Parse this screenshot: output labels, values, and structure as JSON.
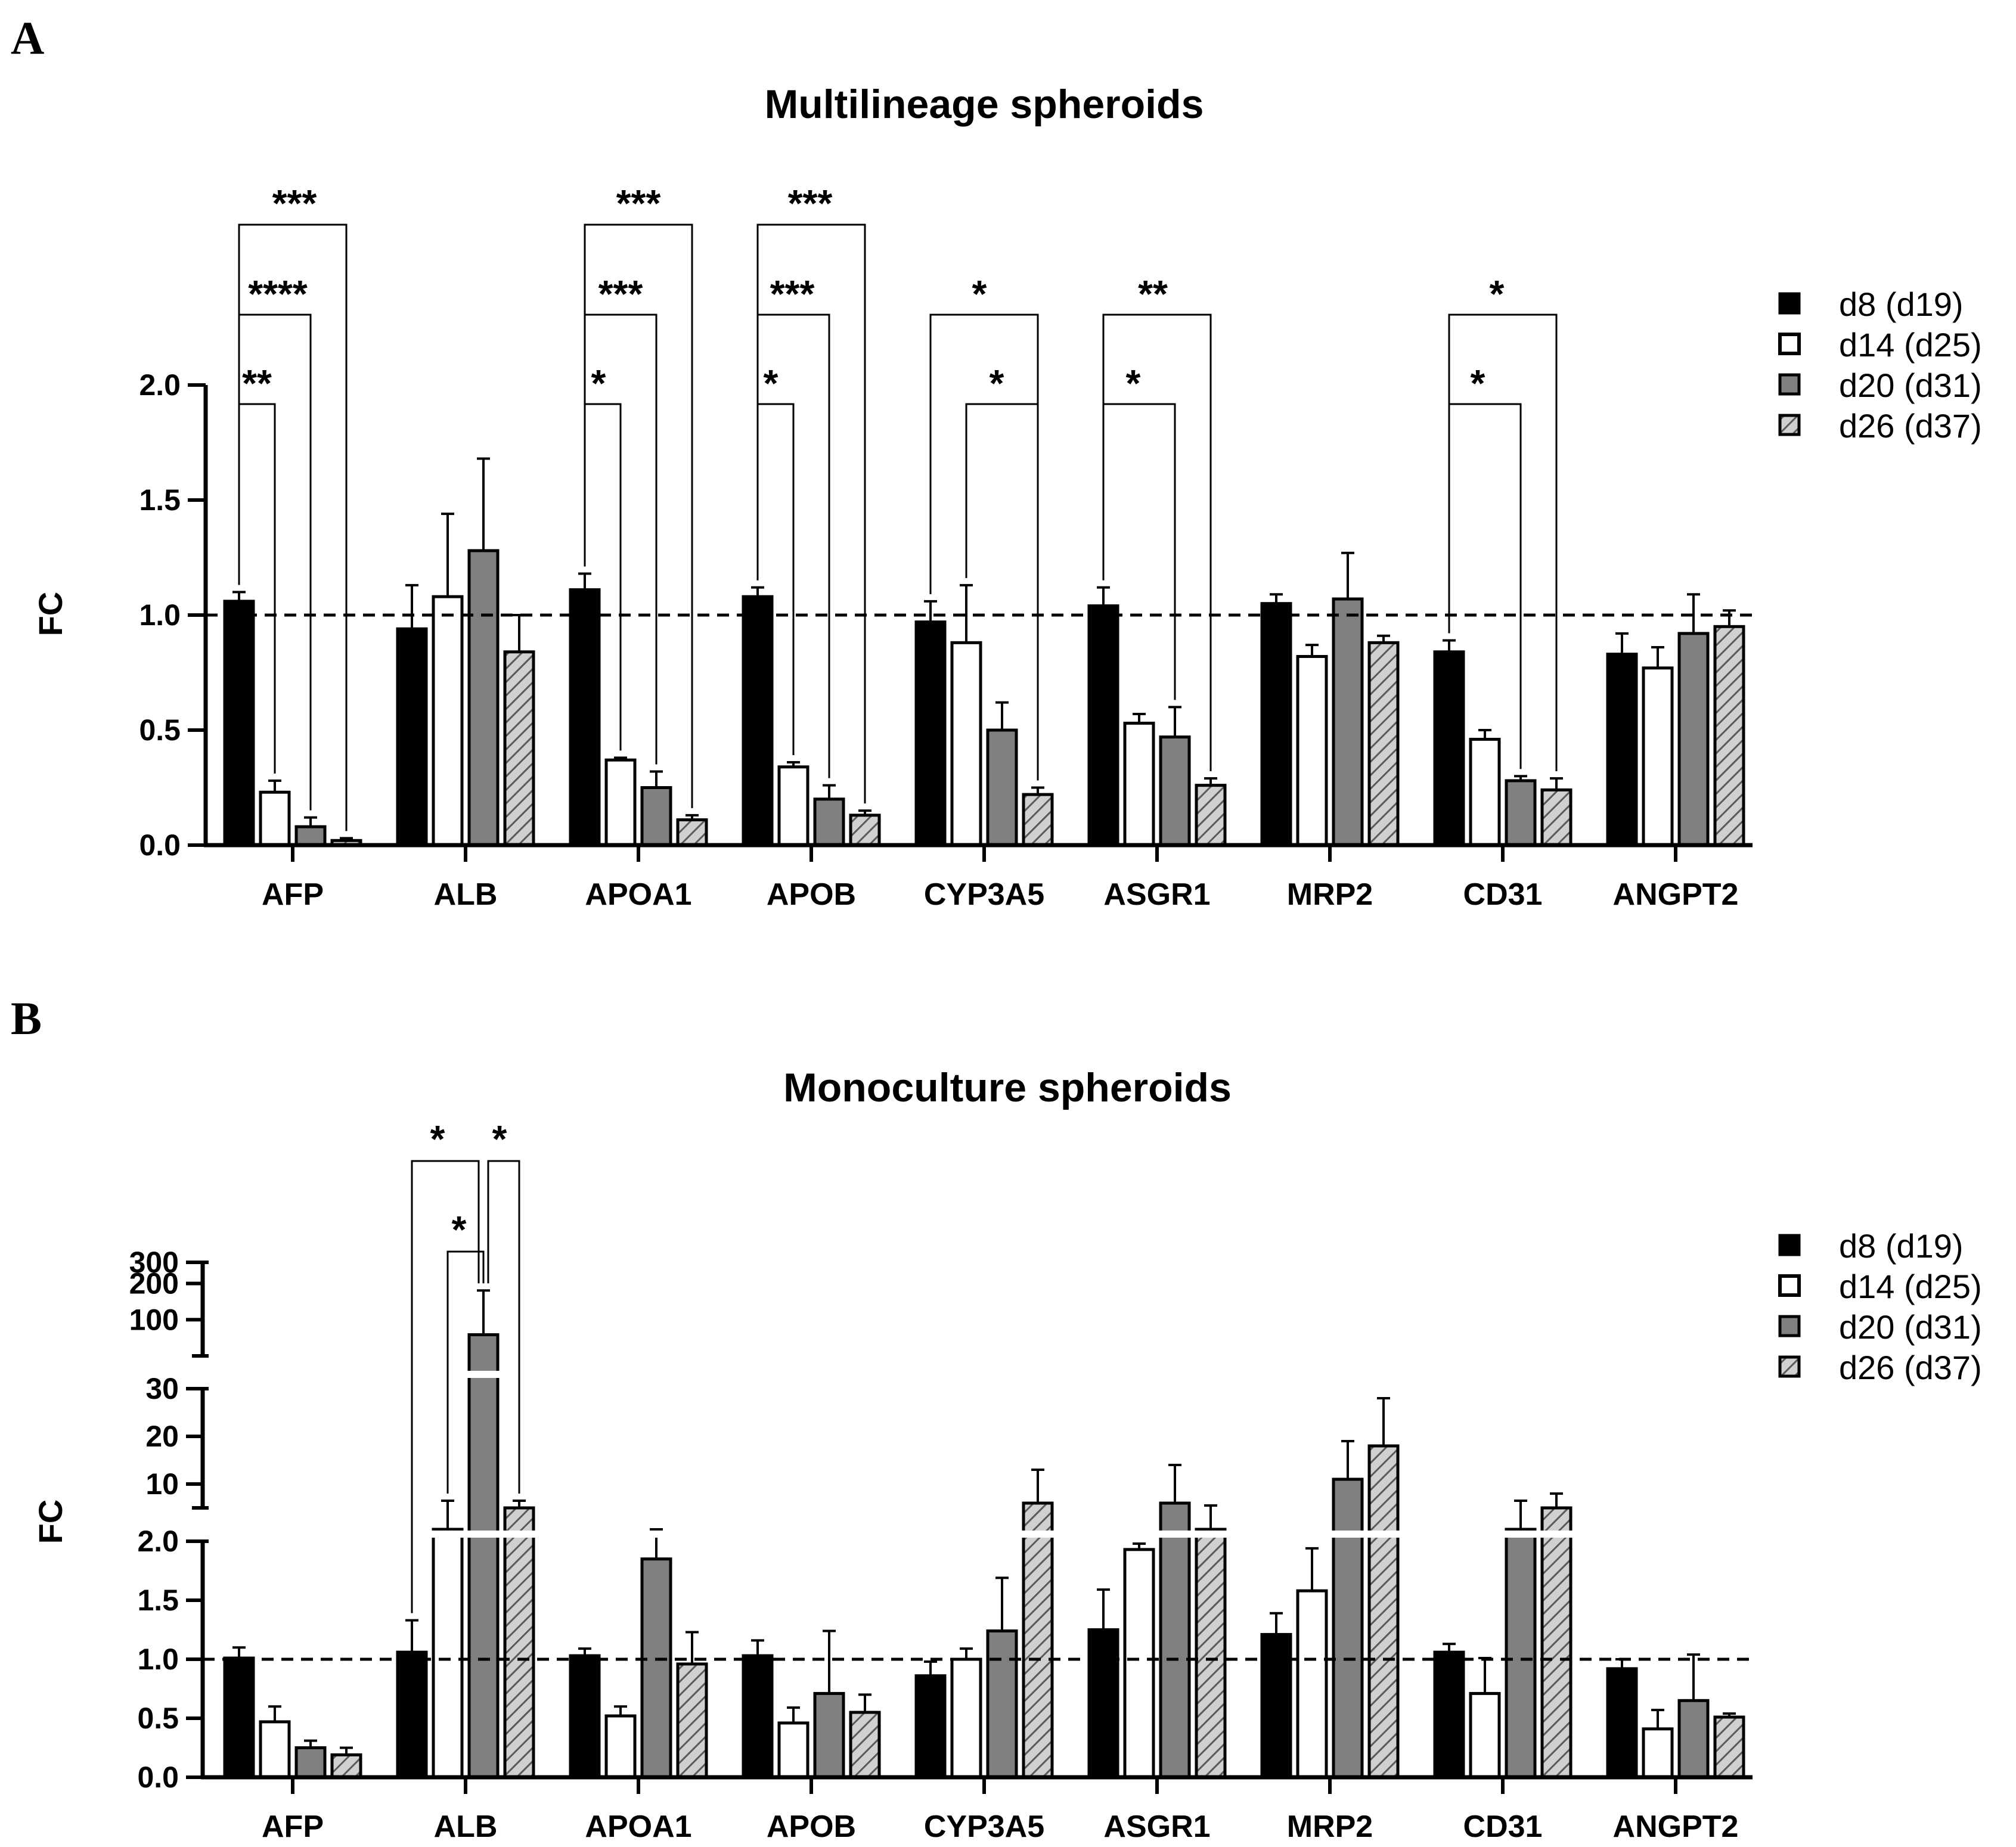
{
  "panels": [
    {
      "letter": "A",
      "title": "Multilineage spheroids",
      "ylabel": "FC",
      "legend": [
        "d8 (d19)",
        "d14 (d25)",
        "d20 (d31)",
        "d26 (d37)"
      ],
      "significance": [
        {
          "marks": "***"
        },
        {
          "marks": "****"
        },
        {
          "marks": "**"
        },
        {
          "marks": "***"
        },
        {
          "marks": "***"
        },
        {
          "marks": "*"
        },
        {
          "marks": "***"
        },
        {
          "marks": "***"
        },
        {
          "marks": "*"
        },
        {
          "marks": "*"
        },
        {
          "marks": "*"
        },
        {
          "marks": "**"
        },
        {
          "marks": "*"
        },
        {
          "marks": "*"
        },
        {
          "marks": "*"
        }
      ]
    },
    {
      "letter": "B",
      "title": "Monoculture spheroids",
      "ylabel": "FC",
      "legend": [
        "d8 (d19)",
        "d14 (d25)",
        "d20 (d31)",
        "d26 (d37)"
      ],
      "significance": [
        {
          "marks": "*"
        },
        {
          "marks": "*"
        },
        {
          "marks": "*"
        }
      ]
    }
  ],
  "colors": {
    "d8": "#000000",
    "d14": "#ffffff",
    "d20": "#808080",
    "d26_hatch": "#888888"
  },
  "chart_data": [
    {
      "type": "bar",
      "title": "Multilineage spheroids",
      "xlabel": "",
      "ylabel": "FC",
      "ylim": [
        0,
        2.0
      ],
      "yticks": [
        "0.0",
        "0.5",
        "1.0",
        "1.5",
        "2.0"
      ],
      "reference_line": 1.0,
      "categories": [
        "AFP",
        "ALB",
        "APOA1",
        "APOB",
        "CYP3A5",
        "ASGR1",
        "MRP2",
        "CD31",
        "ANGPT2"
      ],
      "series": [
        {
          "name": "d8 (d19)",
          "values": [
            1.06,
            0.94,
            1.11,
            1.08,
            0.97,
            1.04,
            1.05,
            0.84,
            0.83
          ],
          "errors": [
            0.04,
            0.19,
            0.07,
            0.04,
            0.09,
            0.08,
            0.04,
            0.05,
            0.09
          ]
        },
        {
          "name": "d14 (d25)",
          "values": [
            0.23,
            1.08,
            0.37,
            0.34,
            0.88,
            0.53,
            0.82,
            0.46,
            0.77
          ],
          "errors": [
            0.05,
            0.36,
            0.01,
            0.02,
            0.25,
            0.04,
            0.05,
            0.04,
            0.09
          ]
        },
        {
          "name": "d20 (d31)",
          "values": [
            0.08,
            1.28,
            0.25,
            0.2,
            0.5,
            0.47,
            1.07,
            0.28,
            0.92
          ],
          "errors": [
            0.04,
            0.4,
            0.07,
            0.06,
            0.12,
            0.13,
            0.2,
            0.02,
            0.17
          ]
        },
        {
          "name": "d26 (d37)",
          "values": [
            0.02,
            0.84,
            0.11,
            0.13,
            0.22,
            0.26,
            0.88,
            0.24,
            0.95
          ],
          "errors": [
            0.01,
            0.16,
            0.02,
            0.02,
            0.03,
            0.03,
            0.03,
            0.05,
            0.07
          ]
        }
      ]
    },
    {
      "type": "bar",
      "title": "Monoculture spheroids",
      "xlabel": "",
      "ylabel": "FC",
      "ylim": [
        0,
        300
      ],
      "y_axis_breaks": [
        [
          0,
          2.0
        ],
        [
          5,
          30
        ],
        [
          50,
          300
        ]
      ],
      "yticks": [
        "0.0",
        "0.5",
        "1.0",
        "1.5",
        "2.0",
        "10",
        "20",
        "30",
        "100",
        "200",
        "300"
      ],
      "reference_line": 1.0,
      "categories": [
        "AFP",
        "ALB",
        "APOA1",
        "APOB",
        "CYP3A5",
        "ASGR1",
        "MRP2",
        "CD31",
        "ANGPT2"
      ],
      "series": [
        {
          "name": "d8 (d19)",
          "values": [
            1.01,
            1.06,
            1.03,
            1.03,
            0.86,
            1.25,
            1.21,
            1.06,
            0.92
          ],
          "errors": [
            0.09,
            0.27,
            0.06,
            0.13,
            0.12,
            0.34,
            0.18,
            0.07,
            0.08
          ]
        },
        {
          "name": "d14 (d25)",
          "values": [
            0.47,
            4.0,
            0.52,
            0.46,
            1.0,
            1.93,
            1.58,
            0.71,
            0.41
          ],
          "errors": [
            0.13,
            2.5,
            0.08,
            0.13,
            0.09,
            0.05,
            0.36,
            0.3,
            0.16
          ]
        },
        {
          "name": "d20 (d31)",
          "values": [
            0.25,
            75,
            1.85,
            0.71,
            1.24,
            6.0,
            11.0,
            4.0,
            0.65
          ],
          "errors": [
            0.06,
            100,
            2.0,
            0.53,
            0.45,
            8.0,
            8.0,
            2.5,
            0.39
          ]
        },
        {
          "name": "d26 (d37)",
          "values": [
            0.19,
            5.0,
            0.96,
            0.55,
            6.0,
            4.0,
            18.0,
            5.0,
            0.51
          ],
          "errors": [
            0.06,
            1.5,
            0.27,
            0.15,
            7.0,
            1.5,
            10.0,
            3.0,
            0.03
          ]
        }
      ]
    }
  ]
}
